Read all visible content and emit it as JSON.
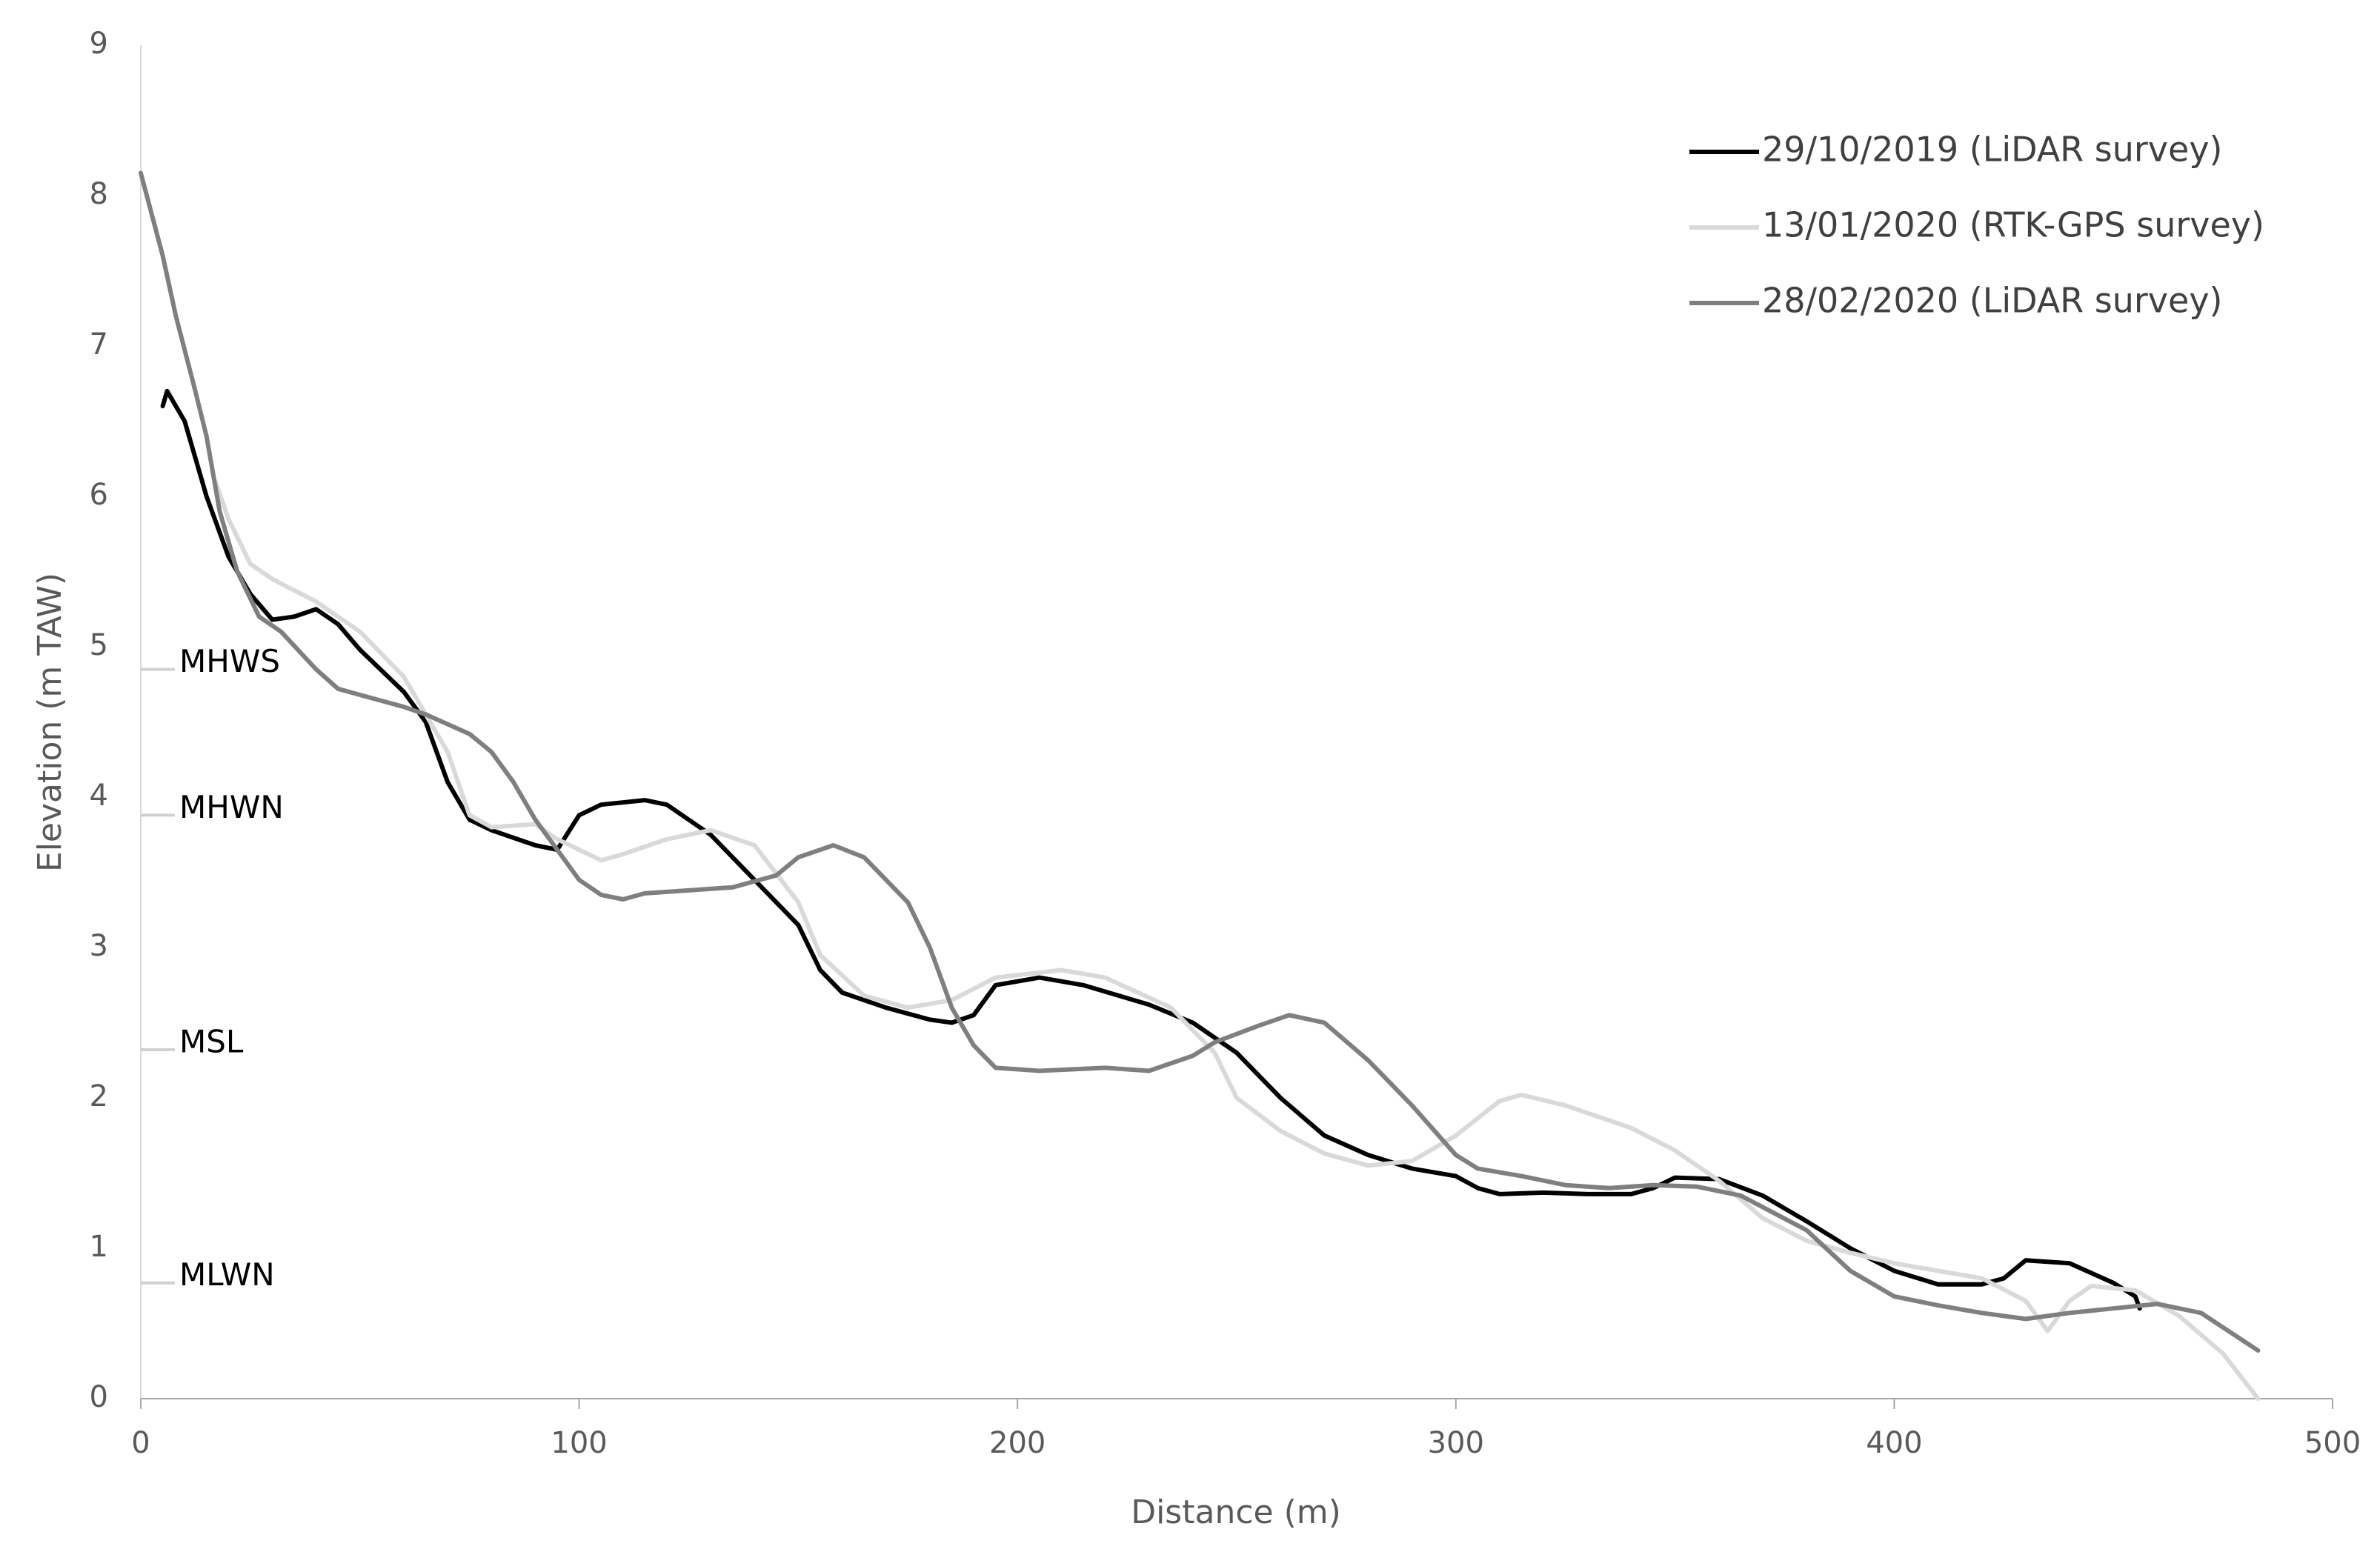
{
  "chart_data": {
    "type": "line",
    "xlabel": "Distance (m)",
    "ylabel": "Elevation (m TAW)",
    "xlim": [
      0,
      500
    ],
    "xticks": [
      0,
      100,
      200,
      300,
      400,
      500
    ],
    "ylim": [
      0,
      9
    ],
    "yticks": [
      0,
      1,
      2,
      3,
      4,
      5,
      6,
      7,
      8,
      9
    ],
    "grid": false,
    "legend": "upper right",
    "reference_levels": [
      {
        "label": "MHWS",
        "value": 4.85,
        "color": "#d0d0d0"
      },
      {
        "label": "MHWN",
        "value": 3.88,
        "color": "#d0d0d0"
      },
      {
        "label": "MSL",
        "value": 2.32,
        "color": "#d0d0d0"
      },
      {
        "label": "MLWN",
        "value": 0.77,
        "color": "#d0d0d0"
      }
    ],
    "series": [
      {
        "name": "29/10/2019 (LiDAR survey)",
        "color": "#000000",
        "x": [
          5,
          6,
          10,
          15,
          20,
          25,
          30,
          35,
          40,
          45,
          50,
          60,
          65,
          70,
          75,
          80,
          90,
          95,
          100,
          105,
          115,
          120,
          130,
          140,
          150,
          155,
          160,
          170,
          180,
          185,
          190,
          195,
          205,
          215,
          230,
          240,
          250,
          260,
          270,
          280,
          290,
          300,
          305,
          310,
          320,
          330,
          340,
          345,
          350,
          360,
          370,
          380,
          390,
          400,
          410,
          420,
          425,
          430,
          440,
          450,
          455,
          456
        ],
        "values": [
          6.6,
          6.7,
          6.5,
          6.0,
          5.6,
          5.35,
          5.18,
          5.2,
          5.25,
          5.15,
          4.98,
          4.7,
          4.5,
          4.1,
          3.85,
          3.78,
          3.68,
          3.65,
          3.88,
          3.95,
          3.98,
          3.95,
          3.75,
          3.45,
          3.15,
          2.85,
          2.7,
          2.6,
          2.52,
          2.5,
          2.55,
          2.75,
          2.8,
          2.75,
          2.62,
          2.5,
          2.3,
          2.0,
          1.75,
          1.62,
          1.53,
          1.48,
          1.4,
          1.36,
          1.37,
          1.36,
          1.36,
          1.4,
          1.47,
          1.46,
          1.35,
          1.18,
          1.0,
          0.85,
          0.76,
          0.76,
          0.8,
          0.92,
          0.9,
          0.77,
          0.68,
          0.6
        ]
      },
      {
        "name": "13/01/2020 (RTK-GPS survey)",
        "color": "#d9d9d9",
        "x": [
          17,
          20,
          25,
          30,
          40,
          50,
          60,
          70,
          75,
          80,
          90,
          95,
          100,
          105,
          110,
          120,
          130,
          140,
          150,
          155,
          165,
          175,
          185,
          195,
          210,
          220,
          235,
          245,
          250,
          260,
          270,
          280,
          290,
          300,
          310,
          315,
          325,
          340,
          350,
          360,
          370,
          380,
          390,
          400,
          420,
          430,
          435,
          440,
          445,
          455,
          465,
          475,
          483
        ],
        "values": [
          6.1,
          5.85,
          5.55,
          5.45,
          5.3,
          5.1,
          4.8,
          4.3,
          3.88,
          3.8,
          3.82,
          3.72,
          3.65,
          3.58,
          3.62,
          3.72,
          3.78,
          3.68,
          3.3,
          2.95,
          2.68,
          2.6,
          2.65,
          2.8,
          2.85,
          2.8,
          2.6,
          2.3,
          2.0,
          1.78,
          1.63,
          1.55,
          1.58,
          1.75,
          1.98,
          2.02,
          1.95,
          1.8,
          1.65,
          1.45,
          1.2,
          1.05,
          0.97,
          0.9,
          0.8,
          0.65,
          0.45,
          0.65,
          0.75,
          0.72,
          0.55,
          0.3,
          0.0
        ]
      },
      {
        "name": "28/02/2020 (LiDAR survey)",
        "color": "#7f7f7f",
        "x": [
          0,
          5,
          8,
          12,
          15,
          18,
          22,
          27,
          32,
          40,
          45,
          50,
          60,
          65,
          75,
          80,
          85,
          90,
          95,
          100,
          105,
          110,
          115,
          125,
          135,
          145,
          150,
          158,
          165,
          175,
          180,
          185,
          190,
          195,
          205,
          220,
          230,
          240,
          245,
          255,
          262,
          270,
          280,
          290,
          300,
          305,
          315,
          325,
          335,
          345,
          355,
          365,
          380,
          390,
          400,
          410,
          420,
          430,
          440,
          450,
          460,
          470,
          483
        ],
        "values": [
          8.15,
          7.6,
          7.2,
          6.75,
          6.4,
          5.9,
          5.5,
          5.2,
          5.1,
          4.85,
          4.72,
          4.68,
          4.6,
          4.55,
          4.42,
          4.3,
          4.1,
          3.85,
          3.65,
          3.45,
          3.35,
          3.32,
          3.36,
          3.38,
          3.4,
          3.48,
          3.6,
          3.68,
          3.6,
          3.3,
          3.0,
          2.6,
          2.35,
          2.2,
          2.18,
          2.2,
          2.18,
          2.28,
          2.37,
          2.48,
          2.55,
          2.5,
          2.25,
          1.95,
          1.62,
          1.53,
          1.48,
          1.42,
          1.4,
          1.42,
          1.41,
          1.35,
          1.12,
          0.85,
          0.68,
          0.62,
          0.57,
          0.53,
          0.57,
          0.6,
          0.63,
          0.57,
          0.32
        ]
      }
    ]
  }
}
